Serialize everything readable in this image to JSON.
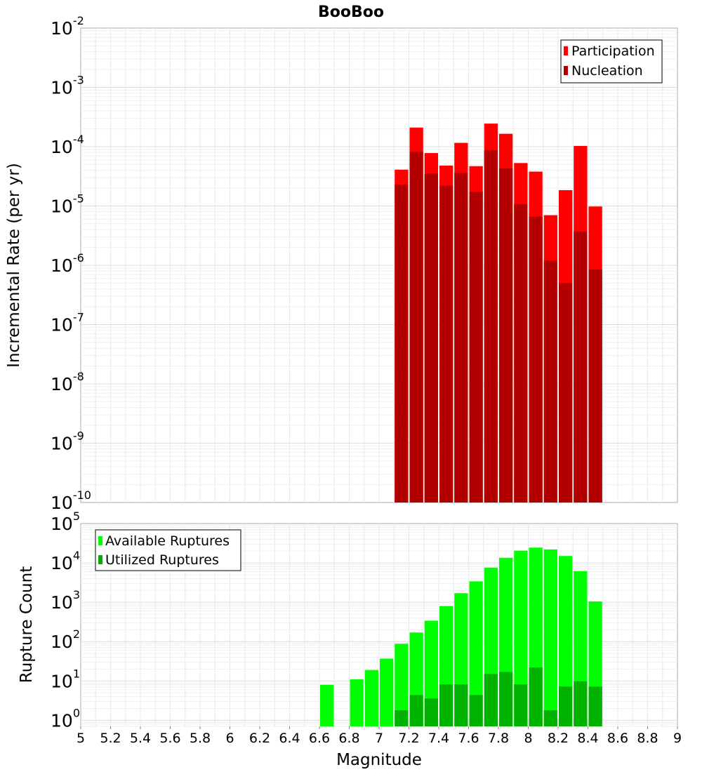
{
  "title": "BooBoo",
  "chart_data": [
    {
      "type": "bar",
      "panel": "top",
      "ylabel": "Incremental Rate (per yr)",
      "yscale": "log",
      "ylim": [
        1e-10,
        0.01
      ],
      "xlim": [
        5,
        9
      ],
      "y_ticks": [
        {
          "base": "10",
          "exp": "-2"
        },
        {
          "base": "10",
          "exp": "-3"
        },
        {
          "base": "10",
          "exp": "-4"
        },
        {
          "base": "10",
          "exp": "-5"
        },
        {
          "base": "10",
          "exp": "-6"
        },
        {
          "base": "10",
          "exp": "-7"
        },
        {
          "base": "10",
          "exp": "-8"
        },
        {
          "base": "10",
          "exp": "-9"
        },
        {
          "base": "10",
          "exp": "-10"
        }
      ],
      "legend_position": "top-right",
      "x": [
        7.15,
        7.25,
        7.35,
        7.45,
        7.55,
        7.65,
        7.75,
        7.85,
        7.95,
        8.05,
        8.15,
        8.25,
        8.35,
        8.45
      ],
      "series": [
        {
          "name": "Participation",
          "color": "#ff0000",
          "values": [
            4.1e-05,
            0.00021,
            7.8e-05,
            4.8e-05,
            0.000116,
            4.7e-05,
            0.000245,
            0.000165,
            5.3e-05,
            3.8e-05,
            7e-06,
            1.85e-05,
            0.000103,
            9.8e-06
          ]
        },
        {
          "name": "Nucleation",
          "color": "#b20000",
          "values": [
            2.3e-05,
            8.2e-05,
            3.5e-05,
            2.2e-05,
            3.6e-05,
            1.75e-05,
            8.7e-05,
            4.3e-05,
            1.08e-05,
            6.6e-06,
            1.2e-06,
            5e-07,
            3.7e-06,
            8.5e-07
          ]
        }
      ]
    },
    {
      "type": "bar",
      "panel": "bottom",
      "xlabel": "Magnitude",
      "ylabel": "Rupture Count",
      "yscale": "log",
      "ylim": [
        0.7,
        100000
      ],
      "xlim": [
        5,
        9
      ],
      "x_ticks": [
        "5",
        "5.2",
        "5.4",
        "5.6",
        "5.8",
        "6",
        "6.2",
        "6.4",
        "6.6",
        "6.8",
        "7",
        "7.2",
        "7.4",
        "7.6",
        "7.8",
        "8",
        "8.2",
        "8.4",
        "8.6",
        "8.8",
        "9"
      ],
      "y_ticks": [
        {
          "base": "10",
          "exp": "5"
        },
        {
          "base": "10",
          "exp": "4"
        },
        {
          "base": "10",
          "exp": "3"
        },
        {
          "base": "10",
          "exp": "2"
        },
        {
          "base": "10",
          "exp": "1"
        },
        {
          "base": "10",
          "exp": "0"
        }
      ],
      "legend_position": "top-left",
      "x": [
        6.65,
        6.75,
        6.85,
        6.95,
        7.05,
        7.15,
        7.25,
        7.35,
        7.45,
        7.55,
        7.65,
        7.75,
        7.85,
        7.95,
        8.05,
        8.15,
        8.25,
        8.35,
        8.45
      ],
      "series": [
        {
          "name": "Available Ruptures",
          "color": "#00ff00",
          "values": [
            8,
            0,
            11,
            19,
            37,
            88,
            170,
            340,
            800,
            1700,
            3400,
            7600,
            13500,
            20500,
            24500,
            22000,
            15000,
            6200,
            1050
          ]
        },
        {
          "name": "Utilized Ruptures",
          "color": "#00b200",
          "values": [
            0,
            0,
            0,
            0,
            0,
            1.8,
            4.4,
            3.6,
            8.2,
            8.2,
            4.4,
            15,
            17,
            8.2,
            22,
            1.8,
            7.2,
            9.8,
            7.2
          ]
        }
      ]
    }
  ]
}
